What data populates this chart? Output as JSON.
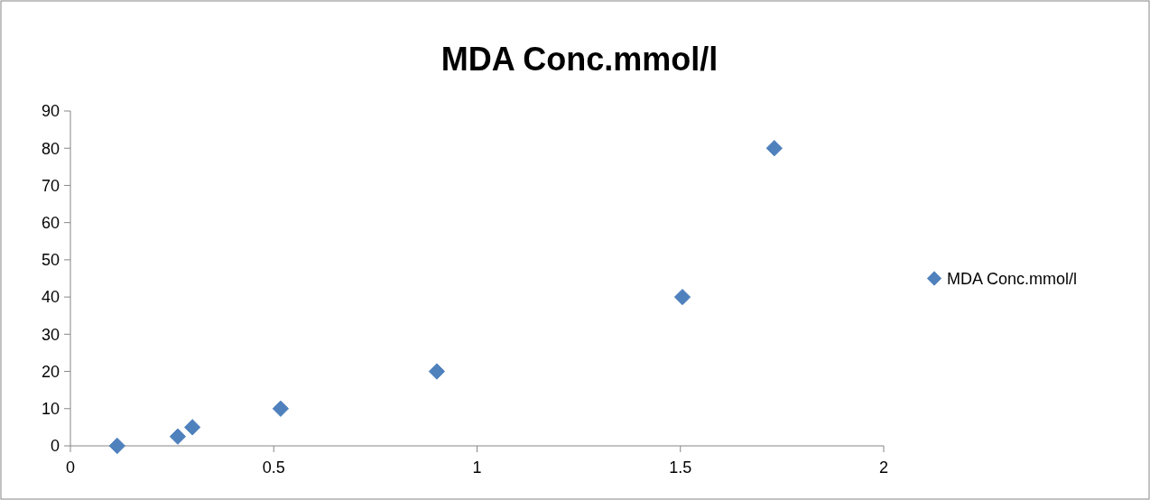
{
  "chart_data": {
    "type": "scatter",
    "title": "MDA Conc.mmol/l",
    "x": [
      0.115,
      0.264,
      0.3,
      0.517,
      0.901,
      1.505,
      1.731
    ],
    "series": [
      {
        "name": "MDA Conc.mmol/l",
        "color": "#4f81bd",
        "values": [
          0,
          2.5,
          5,
          10,
          20,
          40,
          80
        ]
      }
    ],
    "xlim": [
      0,
      2
    ],
    "xticks": [
      0,
      0.5,
      1,
      1.5,
      2
    ],
    "ylim": [
      0,
      90
    ],
    "yticks": [
      0,
      10,
      20,
      30,
      40,
      50,
      60,
      70,
      80,
      90
    ],
    "grid": false,
    "legend": "right",
    "marker": "diamond"
  }
}
